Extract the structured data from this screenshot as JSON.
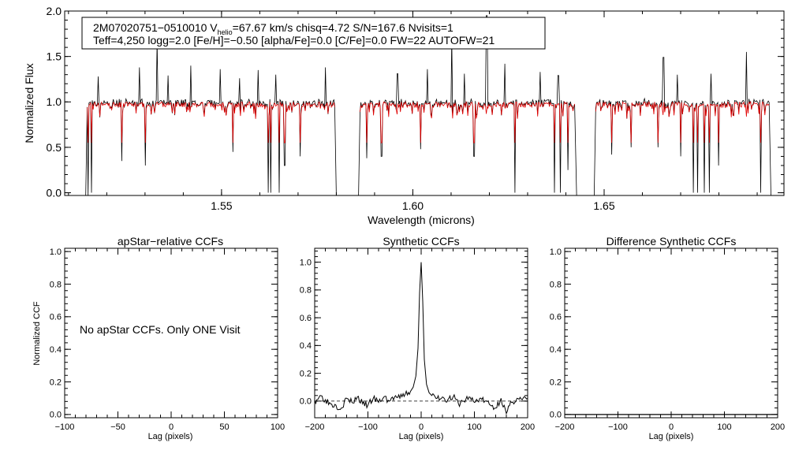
{
  "chart_data": [
    {
      "type": "line",
      "id": "spectrum",
      "info_line1_a": "2M07020751−0510010  V",
      "info_line1_sub": "helio",
      "info_line1_b": "=67.67 km/s  chisq=4.72  S/N=167.6  Nvisits=1",
      "info_line2": "Teff=4,250 logg=2.0 [Fe/H]=−0.50 [alpha/Fe]=0.0 [C/Fe]=0.0 FW=22 AUTOFW=21",
      "xlabel": "Wavelength (microns)",
      "ylabel": "Normalized Flux",
      "xlim": [
        1.509,
        1.697
      ],
      "ylim": [
        -0.03,
        2.0
      ],
      "x_ticks": [
        1.55,
        1.6,
        1.65
      ],
      "x_tick_labels": [
        "1.55",
        "1.60",
        "1.65"
      ],
      "y_ticks": [
        0.0,
        0.5,
        1.0,
        1.5,
        2.0
      ],
      "y_tick_labels": [
        "0.0",
        "0.5",
        "1.0",
        "1.5",
        "2.0"
      ],
      "chips": [
        [
          1.5145,
          1.58
        ],
        [
          1.5858,
          1.6428
        ],
        [
          1.6474,
          1.6936
        ]
      ],
      "series": [
        {
          "name": "observed",
          "color": "#000000"
        },
        {
          "name": "synthetic",
          "color": "#e00000"
        }
      ],
      "emission_spikes": [
        [
          1.5178,
          1.28
        ],
        [
          1.524,
          2.0
        ],
        [
          1.5286,
          1.38
        ],
        [
          1.5332,
          1.68
        ],
        [
          1.5361,
          1.29
        ],
        [
          1.542,
          1.4
        ],
        [
          1.5496,
          1.36
        ],
        [
          1.5548,
          1.26
        ],
        [
          1.5596,
          1.35
        ],
        [
          1.5641,
          1.3
        ],
        [
          1.5772,
          1.38
        ],
        [
          1.596,
          1.31
        ],
        [
          1.6038,
          1.36
        ],
        [
          1.6102,
          1.72
        ],
        [
          1.6135,
          1.31
        ],
        [
          1.6193,
          1.95
        ],
        [
          1.624,
          1.42
        ],
        [
          1.6332,
          1.33
        ],
        [
          1.638,
          1.29
        ],
        [
          1.6655,
          1.49
        ],
        [
          1.6692,
          1.3
        ],
        [
          1.678,
          1.31
        ],
        [
          1.6871,
          1.55
        ]
      ],
      "absorption_dips": [
        [
          1.5152,
          -0.03
        ],
        [
          1.516,
          0.0
        ],
        [
          1.524,
          0.35
        ],
        [
          1.5301,
          0.3
        ],
        [
          1.553,
          0.45
        ],
        [
          1.5622,
          0.0
        ],
        [
          1.5629,
          0.0
        ],
        [
          1.5651,
          0.0
        ],
        [
          1.5665,
          0.3
        ],
        [
          1.5705,
          0.4
        ],
        [
          1.588,
          0.38
        ],
        [
          1.5918,
          0.4
        ],
        [
          1.602,
          0.48
        ],
        [
          1.616,
          0.4
        ],
        [
          1.6266,
          0.0
        ],
        [
          1.637,
          0.0
        ],
        [
          1.6386,
          0.0
        ],
        [
          1.6405,
          0.25
        ],
        [
          1.652,
          0.42
        ],
        [
          1.657,
          0.5
        ],
        [
          1.664,
          0.5
        ],
        [
          1.67,
          0.4
        ],
        [
          1.6733,
          0.0
        ],
        [
          1.6745,
          0.0
        ],
        [
          1.6762,
          0.0
        ],
        [
          1.6775,
          0.0
        ],
        [
          1.68,
          0.3
        ],
        [
          1.691,
          0.0
        ]
      ]
    },
    {
      "type": "line",
      "id": "apstar_ccf",
      "title": "apStar−relative CCFs",
      "ylabel": "Normalized CCF",
      "xlabel": "Lag (pixels)",
      "xlim": [
        -100,
        100
      ],
      "ylim": [
        -0.02,
        1.02
      ],
      "x_ticks": [
        -100,
        -50,
        0,
        50,
        100
      ],
      "x_tick_labels": [
        "−100",
        "−50",
        "0",
        "50",
        "100"
      ],
      "y_ticks": [
        0.0,
        0.2,
        0.4,
        0.6,
        0.8,
        1.0
      ],
      "y_tick_labels": [
        "0.0",
        "0.2",
        "0.4",
        "0.6",
        "0.8",
        "1.0"
      ],
      "annotation": "No apStar CCFs.  Only ONE Visit",
      "series": []
    },
    {
      "type": "line",
      "id": "synthetic_ccf",
      "title": "Synthetic CCFs",
      "xlabel": "Lag (pixels)",
      "xlim": [
        -200,
        200
      ],
      "ylim": [
        -0.12,
        1.1
      ],
      "x_ticks": [
        -200,
        -100,
        0,
        100,
        200
      ],
      "x_tick_labels": [
        "−200",
        "−100",
        "0",
        "100",
        "200"
      ],
      "y_ticks": [
        0.0,
        0.2,
        0.4,
        0.6,
        0.8,
        1.0
      ],
      "y_tick_labels": [
        "0.0",
        "0.2",
        "0.4",
        "0.6",
        "0.8",
        "1.0"
      ],
      "zero_line": 0.0,
      "series": [
        {
          "name": "ccf",
          "x": [
            -200,
            -190,
            -180,
            -170,
            -160,
            -150,
            -140,
            -130,
            -120,
            -110,
            -100,
            -90,
            -80,
            -70,
            -60,
            -50,
            -40,
            -30,
            -20,
            -15,
            -10,
            -6,
            -3,
            0,
            3,
            6,
            10,
            15,
            20,
            30,
            40,
            50,
            60,
            70,
            80,
            90,
            100,
            110,
            120,
            130,
            140,
            150,
            160,
            170,
            180,
            190,
            200
          ],
          "values": [
            0.0,
            0.04,
            0.01,
            -0.02,
            -0.03,
            -0.05,
            0.02,
            -0.01,
            0.03,
            -0.02,
            -0.03,
            0.02,
            -0.01,
            0.03,
            0.0,
            0.03,
            0.02,
            0.05,
            0.07,
            0.1,
            0.18,
            0.38,
            0.78,
            1.0,
            0.72,
            0.3,
            0.12,
            0.06,
            0.04,
            0.02,
            0.03,
            0.01,
            0.03,
            -0.02,
            0.0,
            0.03,
            -0.01,
            0.02,
            0.0,
            -0.03,
            -0.05,
            0.02,
            -0.09,
            -0.01,
            0.02,
            0.01,
            0.02
          ]
        }
      ]
    },
    {
      "type": "line",
      "id": "difference_ccf",
      "title": "Difference Synthetic CCFs",
      "xlabel": "Lag (pixels)",
      "xlim": [
        -200,
        200
      ],
      "ylim": [
        -0.02,
        1.02
      ],
      "x_ticks": [
        -200,
        -100,
        0,
        100,
        200
      ],
      "x_tick_labels": [
        "−200",
        "−100",
        "0",
        "100",
        "200"
      ],
      "y_ticks": [
        0.0,
        0.2,
        0.4,
        0.6,
        0.8,
        1.0
      ],
      "y_tick_labels": [
        "0.0",
        "0.2",
        "0.4",
        "0.6",
        "0.8",
        "1.0"
      ],
      "series": [
        {
          "name": "difference",
          "x": [
            -200,
            200
          ],
          "values": [
            0.0,
            0.0
          ]
        }
      ]
    }
  ]
}
